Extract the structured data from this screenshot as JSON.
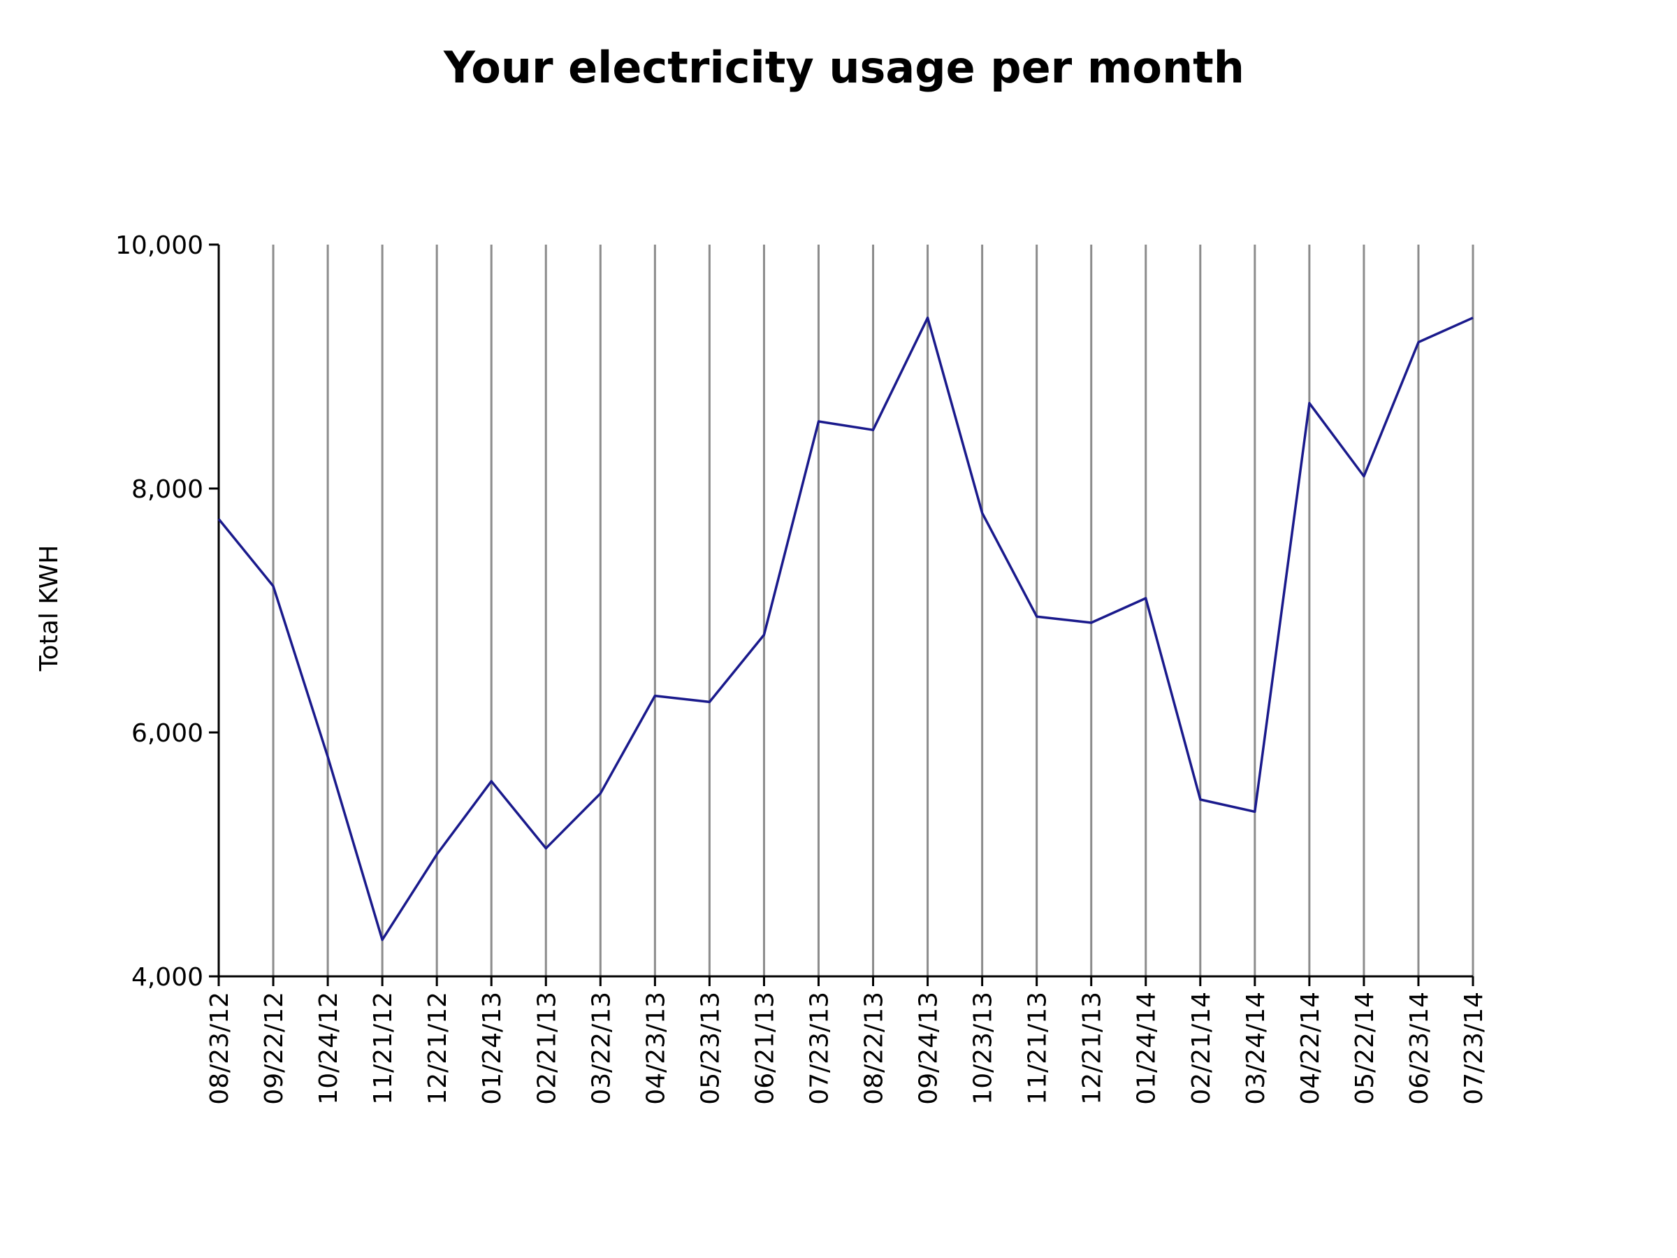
{
  "chart_data": {
    "type": "line",
    "title": "Your electricity usage per month",
    "xlabel": "",
    "ylabel": "Total KWH",
    "ylim": [
      4000,
      10000
    ],
    "yticks": [
      4000,
      6000,
      8000,
      10000
    ],
    "ytick_labels": [
      "4,000",
      "6,000",
      "8,000",
      "10,000"
    ],
    "grid": "vertical",
    "line_color": "#1a1a8c",
    "grid_color": "#8c8c8c",
    "categories": [
      "08/23/12",
      "09/22/12",
      "10/24/12",
      "11/21/12",
      "12/21/12",
      "01/24/13",
      "02/21/13",
      "03/22/13",
      "04/23/13",
      "05/23/13",
      "06/21/13",
      "07/23/13",
      "08/22/13",
      "09/24/13",
      "10/23/13",
      "11/21/13",
      "12/21/13",
      "01/24/14",
      "02/21/14",
      "03/24/14",
      "04/22/14",
      "05/22/14",
      "06/23/14",
      "07/23/14"
    ],
    "series": [
      {
        "values": [
          7750,
          7200,
          5800,
          4300,
          5000,
          5600,
          5050,
          5500,
          6300,
          6250,
          6800,
          8550,
          8480,
          9400,
          7800,
          6950,
          6900,
          7100,
          5450,
          5350,
          8700,
          8100,
          9200,
          9400
        ]
      }
    ]
  }
}
